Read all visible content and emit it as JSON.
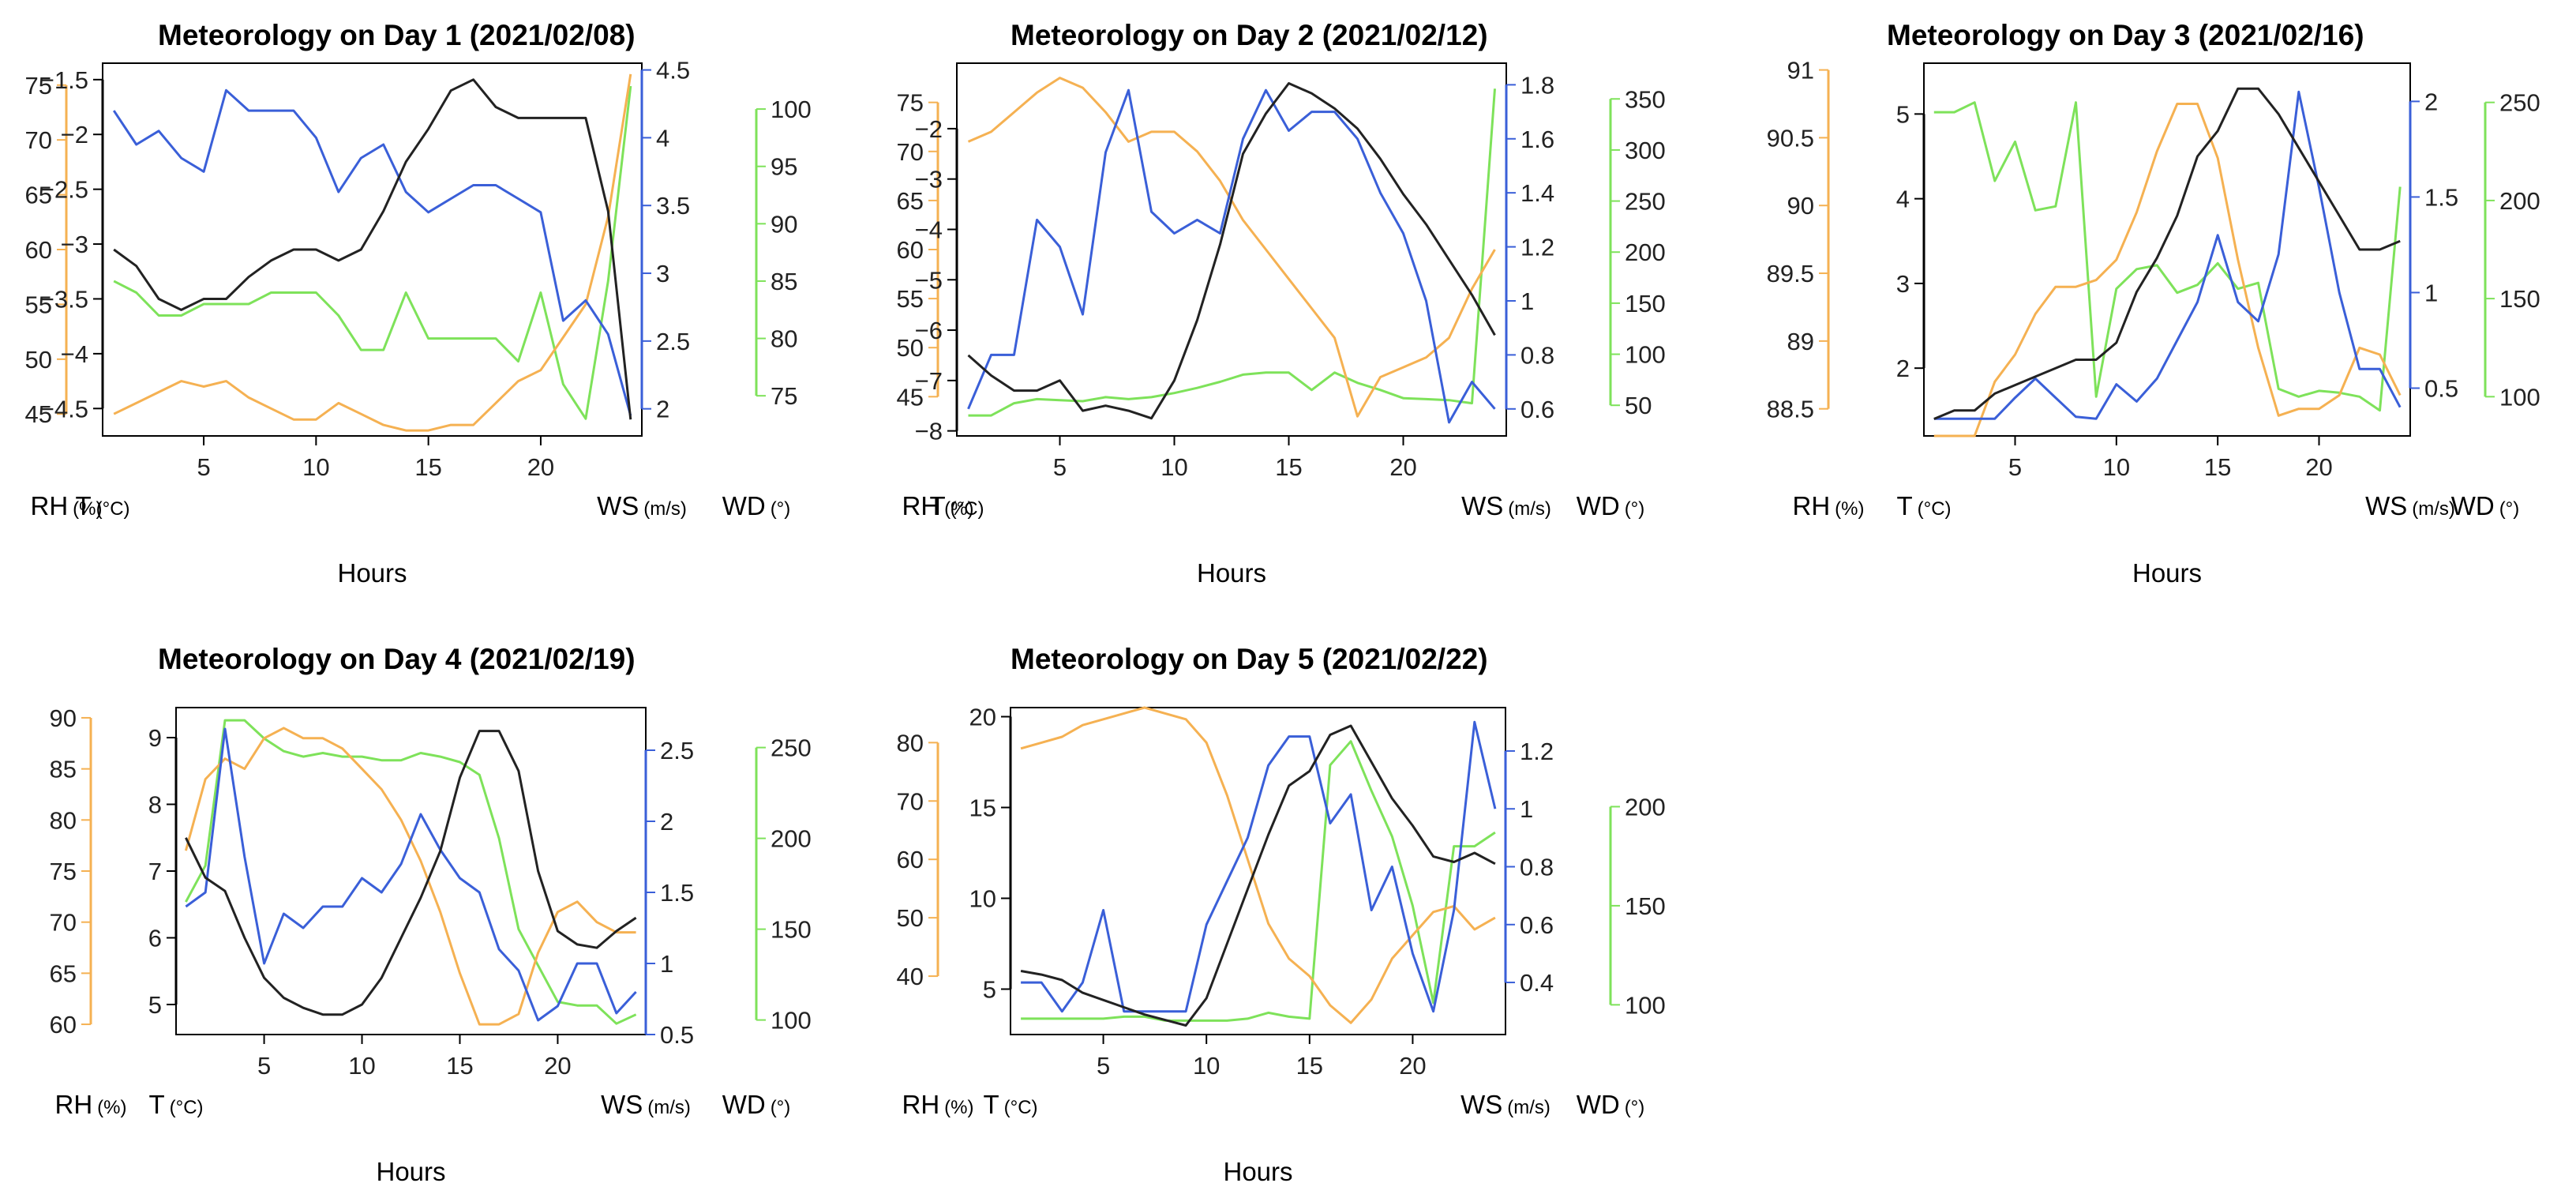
{
  "colors": {
    "rh": "#f5b152",
    "t": "#222222",
    "ws": "#3a5fd8",
    "wd": "#7ee25a"
  },
  "chart_data": [
    {
      "type": "line",
      "title": "Meteorology on Day 1 (2021/02/08)",
      "xlabel": "Hours",
      "xticks": [
        "5",
        "10",
        "15",
        "20"
      ],
      "x": [
        1,
        2,
        3,
        4,
        5,
        6,
        7,
        8,
        9,
        10,
        11,
        12,
        13,
        14,
        15,
        16,
        17,
        18,
        19,
        20,
        21,
        22,
        23,
        24
      ],
      "axes": {
        "rh": {
          "label": "RH",
          "unit": "(%)",
          "range": [
            43,
            77
          ],
          "ticks": [
            45,
            50,
            55,
            60,
            65,
            70,
            75
          ]
        },
        "t": {
          "label": "T",
          "unit": "(°C)",
          "range": [
            -4.75,
            -1.35
          ],
          "ticks": [
            -4.5,
            -4.0,
            -3.5,
            -3.0,
            -2.5,
            -2.0,
            -1.5
          ]
        },
        "ws": {
          "label": "WS",
          "unit": "(m/s)",
          "range": [
            1.8,
            4.55
          ],
          "ticks": [
            2.0,
            2.5,
            3.0,
            3.5,
            4.0,
            4.5
          ]
        },
        "wd": {
          "label": "WD",
          "unit": "(°)",
          "range": [
            71.5,
            104
          ],
          "ticks": [
            75,
            80,
            85,
            90,
            95,
            100
          ]
        }
      },
      "series": [
        {
          "name": "RH",
          "axis": "rh",
          "values": [
            45,
            46,
            47,
            48,
            47.5,
            48,
            46.5,
            45.5,
            44.5,
            44.5,
            46,
            45,
            44,
            43.5,
            43.5,
            44,
            44,
            46,
            48,
            49,
            52,
            55,
            63,
            76
          ]
        },
        {
          "name": "T",
          "axis": "t",
          "values": [
            -3.05,
            -3.2,
            -3.5,
            -3.6,
            -3.5,
            -3.5,
            -3.3,
            -3.15,
            -3.05,
            -3.05,
            -3.15,
            -3.05,
            -2.7,
            -2.25,
            -1.95,
            -1.6,
            -1.5,
            -1.75,
            -1.85,
            -1.85,
            -1.85,
            -1.85,
            -2.7,
            -4.6
          ]
        },
        {
          "name": "WS",
          "axis": "ws",
          "values": [
            4.2,
            3.95,
            4.05,
            3.85,
            3.75,
            4.35,
            4.2,
            4.2,
            4.2,
            4.0,
            3.6,
            3.85,
            3.95,
            3.6,
            3.45,
            3.55,
            3.65,
            3.65,
            3.55,
            3.45,
            2.65,
            2.8,
            2.55,
            1.95
          ]
        },
        {
          "name": "WD",
          "axis": "wd",
          "values": [
            85,
            84,
            82,
            82,
            83,
            83,
            83,
            84,
            84,
            84,
            82,
            79,
            79,
            84,
            80,
            80,
            80,
            80,
            78,
            84,
            76,
            73,
            85,
            102
          ]
        }
      ]
    },
    {
      "type": "line",
      "title": "Meteorology on Day 2 (2021/02/12)",
      "xlabel": "Hours",
      "xticks": [
        "5",
        "10",
        "15",
        "20"
      ],
      "x": [
        1,
        2,
        3,
        4,
        5,
        6,
        7,
        8,
        9,
        10,
        11,
        12,
        13,
        14,
        15,
        16,
        17,
        18,
        19,
        20,
        21,
        22,
        23,
        24
      ],
      "axes": {
        "rh": {
          "label": "RH",
          "unit": "(%)",
          "range": [
            41,
            79
          ],
          "ticks": [
            45,
            50,
            55,
            60,
            65,
            70,
            75
          ]
        },
        "t": {
          "label": "T",
          "unit": "(°C)",
          "range": [
            -8.1,
            -0.7
          ],
          "ticks": [
            -8,
            -7,
            -6,
            -5,
            -4,
            -3,
            -2
          ]
        },
        "ws": {
          "label": "WS",
          "unit": "(m/s)",
          "range": [
            0.5,
            1.88
          ],
          "ticks": [
            0.6,
            0.8,
            1.0,
            1.2,
            1.4,
            1.6,
            1.8
          ]
        },
        "wd": {
          "label": "WD",
          "unit": "(°)",
          "range": [
            20,
            385
          ],
          "ticks": [
            50,
            100,
            150,
            200,
            250,
            300,
            350
          ]
        }
      },
      "series": [
        {
          "name": "RH",
          "axis": "rh",
          "values": [
            71,
            72,
            74,
            76,
            77.5,
            76.5,
            74,
            71,
            72,
            72,
            70,
            67,
            63,
            60,
            57,
            54,
            51,
            43,
            47,
            48,
            49,
            51,
            56,
            60
          ]
        },
        {
          "name": "T",
          "axis": "t",
          "values": [
            -6.5,
            -6.9,
            -7.2,
            -7.2,
            -7.0,
            -7.6,
            -7.5,
            -7.6,
            -7.75,
            -7.0,
            -5.8,
            -4.3,
            -2.5,
            -1.7,
            -1.1,
            -1.3,
            -1.6,
            -2.0,
            -2.6,
            -3.3,
            -3.9,
            -4.6,
            -5.3,
            -6.1
          ]
        },
        {
          "name": "WS",
          "axis": "ws",
          "values": [
            0.6,
            0.8,
            0.8,
            1.3,
            1.2,
            0.95,
            1.55,
            1.78,
            1.33,
            1.25,
            1.3,
            1.25,
            1.6,
            1.78,
            1.63,
            1.7,
            1.7,
            1.6,
            1.4,
            1.25,
            1.0,
            0.55,
            0.7,
            0.6
          ]
        },
        {
          "name": "WD",
          "axis": "wd",
          "values": [
            40,
            40,
            52,
            56,
            55,
            54,
            58,
            56,
            58,
            62,
            67,
            73,
            80,
            82,
            82,
            65,
            82,
            72,
            65,
            57,
            56,
            55,
            52,
            360
          ]
        }
      ]
    },
    {
      "type": "line",
      "title": "Meteorology on Day 3 (2021/02/16)",
      "xlabel": "Hours",
      "xticks": [
        "5",
        "10",
        "15",
        "20"
      ],
      "x": [
        1,
        2,
        3,
        4,
        5,
        6,
        7,
        8,
        9,
        10,
        11,
        12,
        13,
        14,
        15,
        16,
        17,
        18,
        19,
        20,
        21,
        22,
        23,
        24
      ],
      "axes": {
        "rh": {
          "label": "RH",
          "unit": "(%)",
          "range": [
            88.3,
            91.05
          ],
          "ticks": [
            88.5,
            89.0,
            89.5,
            90.0,
            90.5,
            91.0
          ]
        },
        "t": {
          "label": "T",
          "unit": "(°C)",
          "range": [
            1.2,
            5.6
          ],
          "ticks": [
            2,
            3,
            4,
            5
          ]
        },
        "ws": {
          "label": "WS",
          "unit": "(m/s)",
          "range": [
            0.25,
            2.2
          ],
          "ticks": [
            0.5,
            1.0,
            1.5,
            2.0
          ]
        },
        "wd": {
          "label": "WD",
          "unit": "(°)",
          "range": [
            80,
            270
          ],
          "ticks": [
            100,
            150,
            200,
            250
          ]
        }
      },
      "series": [
        {
          "name": "RH",
          "axis": "rh",
          "values": [
            88.3,
            88.3,
            88.3,
            88.7,
            88.9,
            89.2,
            89.4,
            89.4,
            89.45,
            89.6,
            89.95,
            90.4,
            90.75,
            90.75,
            90.35,
            89.6,
            88.95,
            88.45,
            88.5,
            88.5,
            88.6,
            88.95,
            88.9,
            88.6
          ]
        },
        {
          "name": "T",
          "axis": "t",
          "values": [
            1.4,
            1.5,
            1.5,
            1.7,
            1.8,
            1.9,
            2.0,
            2.1,
            2.1,
            2.3,
            2.9,
            3.3,
            3.8,
            4.5,
            4.8,
            5.3,
            5.3,
            5.0,
            4.6,
            4.2,
            3.8,
            3.4,
            3.4,
            3.5
          ]
        },
        {
          "name": "WS",
          "axis": "ws",
          "values": [
            0.34,
            0.34,
            0.34,
            0.34,
            0.45,
            0.55,
            0.45,
            0.35,
            0.34,
            0.52,
            0.43,
            0.55,
            0.75,
            0.95,
            1.3,
            0.95,
            0.85,
            1.2,
            2.05,
            1.55,
            1.0,
            0.6,
            0.6,
            0.4
          ]
        },
        {
          "name": "WD",
          "axis": "wd",
          "values": [
            245,
            245,
            250,
            210,
            230,
            195,
            197,
            250,
            100,
            155,
            165,
            167,
            153,
            157,
            168,
            155,
            158,
            104,
            100,
            103,
            102,
            100,
            93,
            207
          ]
        }
      ]
    },
    {
      "type": "line",
      "title": "Meteorology on Day 4 (2021/02/19)",
      "xlabel": "Hours",
      "xticks": [
        "5",
        "10",
        "15",
        "20"
      ],
      "x": [
        1,
        2,
        3,
        4,
        5,
        6,
        7,
        8,
        9,
        10,
        11,
        12,
        13,
        14,
        15,
        16,
        17,
        18,
        19,
        20,
        21,
        22,
        23,
        24
      ],
      "axes": {
        "rh": {
          "label": "RH",
          "unit": "(%)",
          "range": [
            59,
            91
          ],
          "ticks": [
            60,
            65,
            70,
            75,
            80,
            85,
            90
          ]
        },
        "t": {
          "label": "T",
          "unit": "(°C)",
          "range": [
            4.55,
            9.45
          ],
          "ticks": [
            5,
            6,
            7,
            8,
            9
          ]
        },
        "ws": {
          "label": "WS",
          "unit": "(m/s)",
          "range": [
            0.5,
            2.8
          ],
          "ticks": [
            0.5,
            1.0,
            1.5,
            2.0,
            2.5
          ]
        },
        "wd": {
          "label": "WD",
          "unit": "(°)",
          "range": [
            92,
            272
          ],
          "ticks": [
            100,
            150,
            200,
            250
          ]
        }
      },
      "series": [
        {
          "name": "RH",
          "axis": "rh",
          "values": [
            77,
            84,
            86,
            85,
            88,
            89,
            88,
            88,
            87,
            85,
            83,
            80,
            76,
            71,
            65,
            60,
            60,
            61,
            67,
            71,
            72,
            70,
            69,
            69
          ]
        },
        {
          "name": "T",
          "axis": "t",
          "values": [
            7.5,
            6.9,
            6.7,
            6.0,
            5.4,
            5.1,
            4.95,
            4.85,
            4.85,
            5.0,
            5.4,
            6.0,
            6.6,
            7.3,
            8.4,
            9.1,
            9.1,
            8.5,
            7.0,
            6.1,
            5.9,
            5.85,
            6.1,
            6.3
          ]
        },
        {
          "name": "WS",
          "axis": "ws",
          "values": [
            1.4,
            1.5,
            2.65,
            1.75,
            1.0,
            1.35,
            1.25,
            1.4,
            1.4,
            1.6,
            1.5,
            1.7,
            2.05,
            1.8,
            1.6,
            1.5,
            1.1,
            0.95,
            0.6,
            0.7,
            1.0,
            1.0,
            0.65,
            0.8
          ]
        },
        {
          "name": "WD",
          "axis": "wd",
          "values": [
            165,
            185,
            265,
            265,
            255,
            248,
            245,
            247,
            245,
            245,
            243,
            243,
            247,
            245,
            242,
            235,
            200,
            150,
            130,
            110,
            108,
            108,
            98,
            103
          ]
        }
      ]
    },
    {
      "type": "line",
      "title": "Meteorology on Day 5 (2021/02/22)",
      "xlabel": "Hours",
      "xticks": [
        "5",
        "10",
        "15",
        "20"
      ],
      "x": [
        1,
        2,
        3,
        4,
        5,
        6,
        7,
        8,
        9,
        10,
        11,
        12,
        13,
        14,
        15,
        16,
        17,
        18,
        19,
        20,
        21,
        22,
        23,
        24
      ],
      "axes": {
        "rh": {
          "label": "RH",
          "unit": "(%)",
          "range": [
            30,
            86
          ],
          "ticks": [
            40,
            50,
            60,
            70,
            80
          ]
        },
        "t": {
          "label": "T",
          "unit": "(°C)",
          "range": [
            2.5,
            20.5
          ],
          "ticks": [
            5,
            10,
            15,
            20
          ]
        },
        "ws": {
          "label": "WS",
          "unit": "(m/s)",
          "range": [
            0.22,
            1.35
          ],
          "ticks": [
            0.4,
            0.6,
            0.8,
            1.0,
            1.2
          ]
        },
        "wd": {
          "label": "WD",
          "unit": "(°)",
          "range": [
            85,
            250
          ],
          "ticks": [
            100,
            150,
            200
          ]
        }
      },
      "series": [
        {
          "name": "RH",
          "axis": "rh",
          "values": [
            79,
            80,
            81,
            83,
            84,
            85,
            86,
            85,
            84,
            80,
            71,
            60,
            49,
            43,
            40,
            35,
            32,
            36,
            43,
            47,
            51,
            52,
            48,
            50
          ]
        },
        {
          "name": "T",
          "axis": "t",
          "values": [
            6,
            5.8,
            5.5,
            4.8,
            4.4,
            4.0,
            3.6,
            3.3,
            3.0,
            4.5,
            7.5,
            10.5,
            13.5,
            16.2,
            17.0,
            19.0,
            19.5,
            17.5,
            15.5,
            14.0,
            12.3,
            12.0,
            12.5,
            11.9
          ]
        },
        {
          "name": "WS",
          "axis": "ws",
          "values": [
            0.4,
            0.4,
            0.3,
            0.4,
            0.65,
            0.3,
            0.3,
            0.3,
            0.3,
            0.6,
            0.75,
            0.9,
            1.15,
            1.25,
            1.25,
            0.95,
            1.05,
            0.65,
            0.8,
            0.5,
            0.3,
            0.65,
            1.3,
            1.0
          ]
        },
        {
          "name": "WD",
          "axis": "wd",
          "values": [
            93,
            93,
            93,
            93,
            93,
            94,
            94,
            92,
            92,
            92,
            92,
            93,
            96,
            94,
            93,
            221,
            233,
            208,
            185,
            150,
            101,
            180,
            180,
            187
          ]
        }
      ]
    }
  ]
}
